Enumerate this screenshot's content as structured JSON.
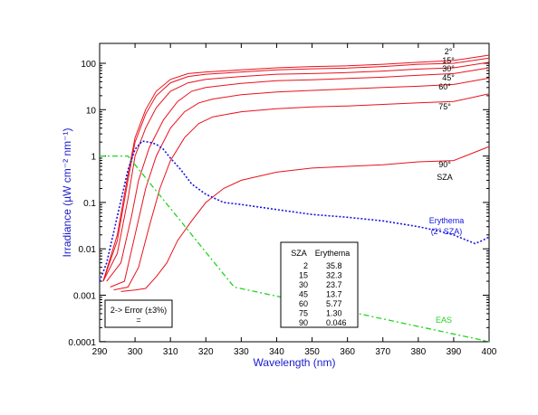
{
  "chart_data": {
    "type": "line",
    "xlabel": "Wavelength (nm)",
    "ylabel": "Irradiance (µW cm⁻² nm⁻¹)",
    "xlim": [
      290,
      400
    ],
    "ylim": [
      0.0001,
      200
    ],
    "yscale": "log",
    "x_ticks": [
      290,
      300,
      310,
      320,
      330,
      340,
      350,
      360,
      370,
      380,
      390,
      400
    ],
    "y_ticks": [
      {
        "value": 0.0001,
        "label": "0.0001"
      },
      {
        "value": 0.001,
        "label": "0.001"
      },
      {
        "value": 0.01,
        "label": "0.01"
      },
      {
        "value": 0.1,
        "label": "0.1"
      },
      {
        "value": 1,
        "label": "1"
      },
      {
        "value": 10,
        "label": "10"
      },
      {
        "value": 100,
        "label": "100"
      }
    ],
    "colors": {
      "sza": "#e8121c",
      "erythema": "#1515e0",
      "eas": "#1fd61f",
      "axis": "#000000",
      "title": "#1a1acc"
    },
    "series": [
      {
        "name": "2°",
        "style": "solid",
        "points": [
          [
            291,
            0.002
          ],
          [
            295,
            0.02
          ],
          [
            298,
            0.4
          ],
          [
            300,
            2.5
          ],
          [
            303,
            10
          ],
          [
            306,
            25
          ],
          [
            310,
            45
          ],
          [
            315,
            60
          ],
          [
            320,
            65
          ],
          [
            330,
            72
          ],
          [
            340,
            80
          ],
          [
            350,
            85
          ],
          [
            360,
            88
          ],
          [
            370,
            95
          ],
          [
            380,
            105
          ],
          [
            390,
            115
          ],
          [
            400,
            150
          ]
        ]
      },
      {
        "name": "15°",
        "style": "solid",
        "points": [
          [
            291,
            0.002
          ],
          [
            295,
            0.015
          ],
          [
            298,
            0.3
          ],
          [
            300,
            2
          ],
          [
            303,
            8
          ],
          [
            306,
            20
          ],
          [
            310,
            38
          ],
          [
            315,
            52
          ],
          [
            320,
            58
          ],
          [
            330,
            65
          ],
          [
            340,
            72
          ],
          [
            350,
            76
          ],
          [
            360,
            79
          ],
          [
            370,
            85
          ],
          [
            380,
            95
          ],
          [
            390,
            100
          ],
          [
            400,
            130
          ]
        ]
      },
      {
        "name": "30°",
        "style": "solid",
        "points": [
          [
            291,
            0.002
          ],
          [
            295,
            0.008
          ],
          [
            298,
            0.12
          ],
          [
            300,
            1
          ],
          [
            303,
            4
          ],
          [
            306,
            11
          ],
          [
            310,
            25
          ],
          [
            315,
            38
          ],
          [
            320,
            45
          ],
          [
            330,
            52
          ],
          [
            340,
            58
          ],
          [
            350,
            60
          ],
          [
            360,
            63
          ],
          [
            370,
            68
          ],
          [
            380,
            75
          ],
          [
            390,
            80
          ],
          [
            400,
            105
          ]
        ]
      },
      {
        "name": "45°",
        "style": "solid",
        "points": [
          [
            292,
            0.002
          ],
          [
            296,
            0.005
          ],
          [
            299,
            0.05
          ],
          [
            301,
            0.3
          ],
          [
            304,
            1.5
          ],
          [
            308,
            6
          ],
          [
            312,
            15
          ],
          [
            316,
            25
          ],
          [
            320,
            30
          ],
          [
            330,
            37
          ],
          [
            340,
            42
          ],
          [
            350,
            44
          ],
          [
            360,
            47
          ],
          [
            370,
            50
          ],
          [
            380,
            55
          ],
          [
            390,
            60
          ],
          [
            400,
            80
          ]
        ]
      },
      {
        "name": "60°",
        "style": "solid",
        "points": [
          [
            293,
            0.0015
          ],
          [
            297,
            0.002
          ],
          [
            300,
            0.02
          ],
          [
            303,
            0.2
          ],
          [
            306,
            1
          ],
          [
            310,
            4
          ],
          [
            314,
            9
          ],
          [
            318,
            14
          ],
          [
            322,
            17
          ],
          [
            330,
            21
          ],
          [
            340,
            24
          ],
          [
            350,
            26
          ],
          [
            360,
            28
          ],
          [
            370,
            30
          ],
          [
            380,
            32
          ],
          [
            390,
            35
          ],
          [
            400,
            48
          ]
        ]
      },
      {
        "name": "75°",
        "style": "solid",
        "points": [
          [
            294,
            0.0013
          ],
          [
            298,
            0.0015
          ],
          [
            301,
            0.004
          ],
          [
            304,
            0.03
          ],
          [
            307,
            0.2
          ],
          [
            310,
            0.8
          ],
          [
            314,
            2.5
          ],
          [
            318,
            5
          ],
          [
            322,
            7
          ],
          [
            330,
            9
          ],
          [
            340,
            10.5
          ],
          [
            350,
            11.5
          ],
          [
            360,
            12
          ],
          [
            370,
            13
          ],
          [
            380,
            14
          ],
          [
            390,
            15
          ],
          [
            400,
            22
          ]
        ]
      },
      {
        "name": "90°",
        "style": "solid",
        "points": [
          [
            296,
            0.0012
          ],
          [
            300,
            0.0013
          ],
          [
            303,
            0.0014
          ],
          [
            306,
            0.0025
          ],
          [
            309,
            0.005
          ],
          [
            312,
            0.015
          ],
          [
            316,
            0.04
          ],
          [
            320,
            0.1
          ],
          [
            325,
            0.2
          ],
          [
            330,
            0.3
          ],
          [
            340,
            0.45
          ],
          [
            350,
            0.55
          ],
          [
            360,
            0.6
          ],
          [
            370,
            0.65
          ],
          [
            380,
            0.75
          ],
          [
            390,
            0.8
          ],
          [
            400,
            1.6
          ]
        ]
      },
      {
        "name": "Erythema (2° SZA)",
        "style": "dotted",
        "points": [
          [
            290,
            0.002
          ],
          [
            292,
            0.005
          ],
          [
            295,
            0.05
          ],
          [
            298,
            0.5
          ],
          [
            300,
            1.4
          ],
          [
            302,
            2.1
          ],
          [
            304,
            2
          ],
          [
            306,
            1.8
          ],
          [
            308,
            1.4
          ],
          [
            310,
            0.9
          ],
          [
            313,
            0.5
          ],
          [
            316,
            0.25
          ],
          [
            320,
            0.15
          ],
          [
            325,
            0.1
          ],
          [
            330,
            0.09
          ],
          [
            340,
            0.07
          ],
          [
            350,
            0.055
          ],
          [
            360,
            0.048
          ],
          [
            370,
            0.04
          ],
          [
            380,
            0.03
          ],
          [
            385,
            0.025
          ],
          [
            390,
            0.02
          ],
          [
            394,
            0.015
          ],
          [
            396,
            0.013
          ],
          [
            398,
            0.015
          ],
          [
            400,
            0.018
          ]
        ]
      },
      {
        "name": "EAS",
        "style": "dashdot",
        "points": [
          [
            290,
            1
          ],
          [
            298,
            1
          ],
          [
            328,
            0.0015
          ],
          [
            400,
            0.0001
          ]
        ]
      }
    ],
    "sza_labels": [
      "2°",
      "15°",
      "30°",
      "45°",
      "60°",
      "75°",
      "90°"
    ],
    "sza_title": "SZA",
    "erythema_label_1": "Erythema",
    "erythema_label_2": "(2° SZA)",
    "eas_label": "EAS",
    "legend_box": {
      "line1": "2-> Error (±3%)",
      "line2": "="
    },
    "table": {
      "headers": [
        "SZA",
        "Erythema"
      ],
      "rows": [
        [
          "2",
          "35.8"
        ],
        [
          "15",
          "32.3"
        ],
        [
          "30",
          "23.7"
        ],
        [
          "45",
          "13.7"
        ],
        [
          "60",
          "5.77"
        ],
        [
          "75",
          "1.30"
        ],
        [
          "90",
          "0.046"
        ]
      ]
    }
  }
}
